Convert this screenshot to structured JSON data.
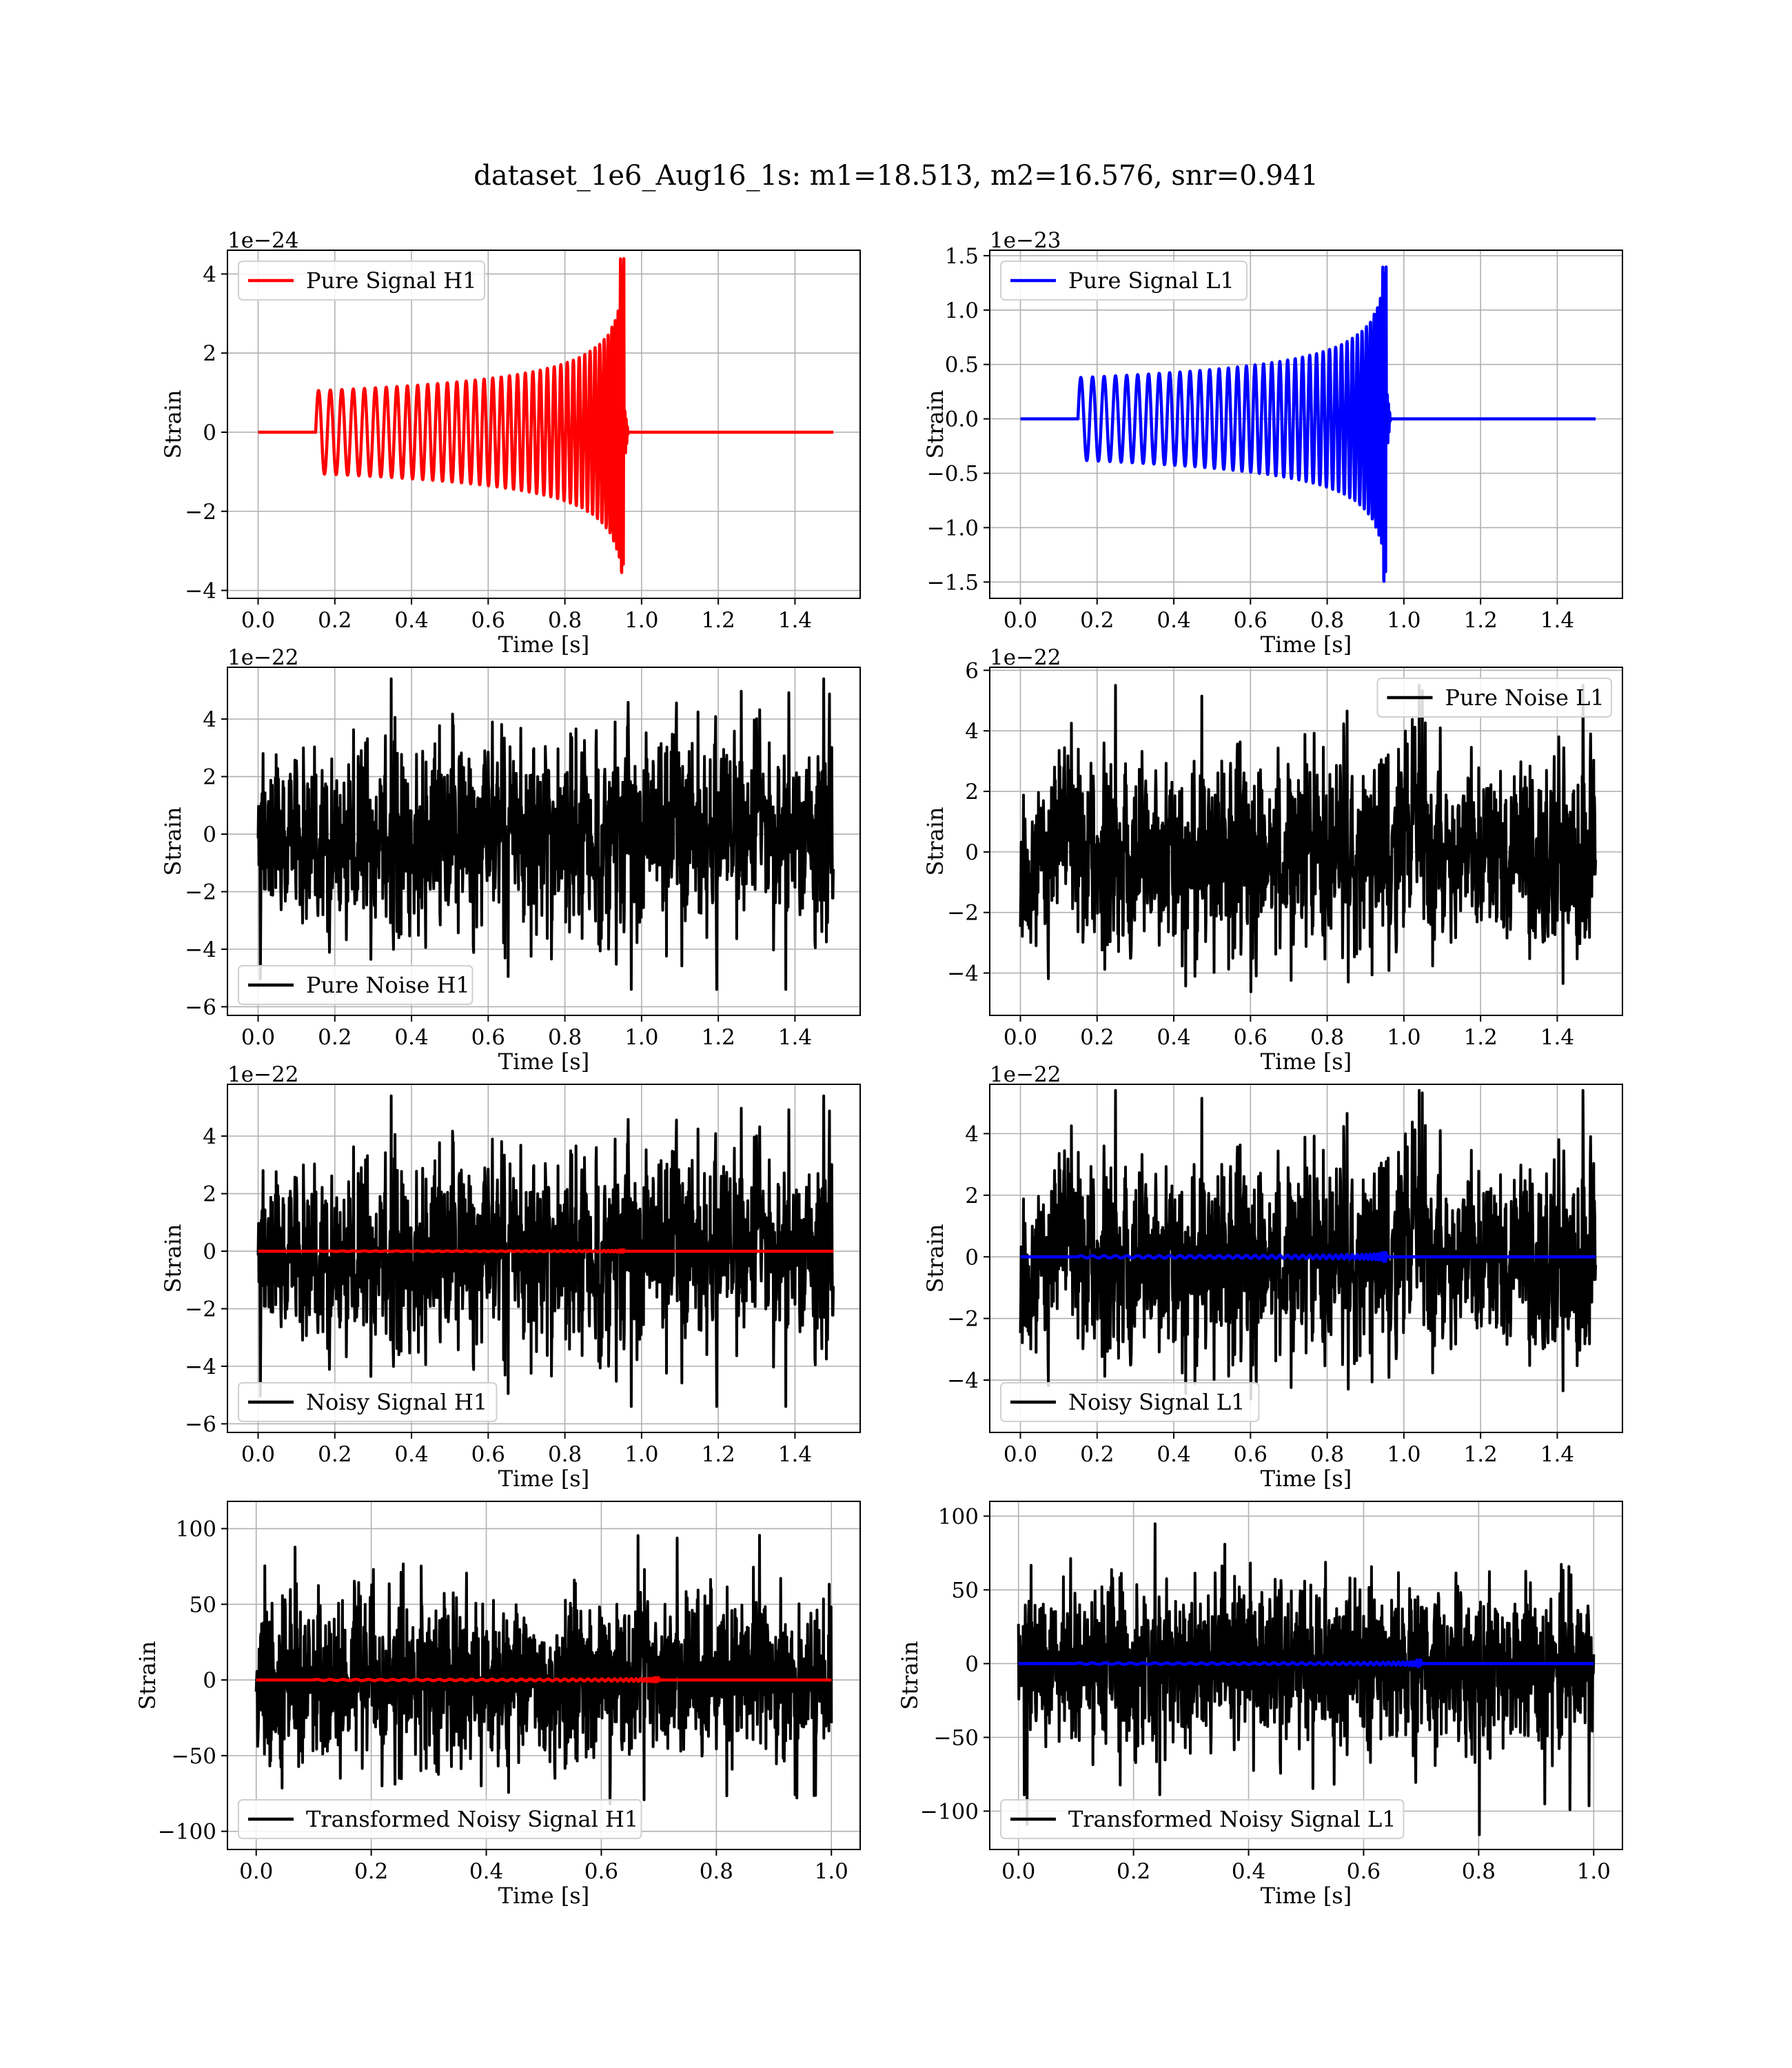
{
  "figure": {
    "title": "dataset_1e6_Aug16_1s: m1=18.513, m2=16.576, snr=0.941"
  },
  "chart_data": [
    {
      "id": "pure-signal-h1",
      "type": "line",
      "title": "",
      "xlabel": "Time [s]",
      "ylabel": "Strain",
      "offset_text": "1e−24",
      "xlim": [
        -0.08,
        1.57
      ],
      "ylim": [
        -4.2,
        4.6
      ],
      "xticks": [
        0.0,
        0.2,
        0.4,
        0.6,
        0.8,
        1.0,
        1.2,
        1.4
      ],
      "xtick_labels": [
        "0.0",
        "0.2",
        "0.4",
        "0.6",
        "0.8",
        "1.0",
        "1.2",
        "1.4"
      ],
      "yticks": [
        -4,
        -2,
        0,
        2,
        4
      ],
      "ytick_labels": [
        "−4",
        "−2",
        "0",
        "2",
        "4"
      ],
      "grid": true,
      "legend_position": "upper-left",
      "series": [
        {
          "name": "Pure Signal H1",
          "color": "#ff0000",
          "kind": "chirp",
          "x_range": [
            0.0,
            1.5
          ],
          "start": 0.15,
          "merger": 0.955,
          "amp_start": 1.05,
          "amp_peak": 4.4,
          "amp_min": -3.8,
          "cycles": 42,
          "samples": 2400,
          "seed": 11
        }
      ]
    },
    {
      "id": "pure-signal-l1",
      "type": "line",
      "title": "",
      "xlabel": "Time [s]",
      "ylabel": "Strain",
      "offset_text": "1e−23",
      "xlim": [
        -0.08,
        1.57
      ],
      "ylim": [
        -1.65,
        1.55
      ],
      "xticks": [
        0.0,
        0.2,
        0.4,
        0.6,
        0.8,
        1.0,
        1.2,
        1.4
      ],
      "xtick_labels": [
        "0.0",
        "0.2",
        "0.4",
        "0.6",
        "0.8",
        "1.0",
        "1.2",
        "1.4"
      ],
      "yticks": [
        -1.5,
        -1.0,
        -0.5,
        0.0,
        0.5,
        1.0,
        1.5
      ],
      "ytick_labels": [
        "−1.5",
        "−1.0",
        "−0.5",
        "0.0",
        "0.5",
        "1.0",
        "1.5"
      ],
      "grid": true,
      "legend_position": "upper-left",
      "series": [
        {
          "name": "Pure Signal L1",
          "color": "#0000ff",
          "kind": "chirp",
          "x_range": [
            0.0,
            1.5
          ],
          "start": 0.15,
          "merger": 0.955,
          "amp_start": 0.38,
          "amp_peak": 1.4,
          "amp_min": -1.6,
          "cycles": 42,
          "samples": 2400,
          "seed": 12
        }
      ]
    },
    {
      "id": "pure-noise-h1",
      "type": "line",
      "title": "",
      "xlabel": "Time [s]",
      "ylabel": "Strain",
      "offset_text": "1e−22",
      "xlim": [
        -0.08,
        1.57
      ],
      "ylim": [
        -6.3,
        5.8
      ],
      "xticks": [
        0.0,
        0.2,
        0.4,
        0.6,
        0.8,
        1.0,
        1.2,
        1.4
      ],
      "xtick_labels": [
        "0.0",
        "0.2",
        "0.4",
        "0.6",
        "0.8",
        "1.0",
        "1.2",
        "1.4"
      ],
      "yticks": [
        -6,
        -4,
        -2,
        0,
        2,
        4
      ],
      "ytick_labels": [
        "−6",
        "−4",
        "−2",
        "0",
        "2",
        "4"
      ],
      "grid": true,
      "legend_position": "lower-left",
      "series": [
        {
          "name": "Pure Noise H1",
          "color": "#000000",
          "kind": "noise",
          "x_range": [
            0.0,
            1.5
          ],
          "scale": 1.6,
          "clip": [
            -5.4,
            5.4
          ],
          "samples": 1500,
          "seed": 101
        }
      ]
    },
    {
      "id": "pure-noise-l1",
      "type": "line",
      "title": "",
      "xlabel": "Time [s]",
      "ylabel": "Strain",
      "offset_text": "1e−22",
      "xlim": [
        -0.08,
        1.57
      ],
      "ylim": [
        -5.4,
        6.1
      ],
      "xticks": [
        0.0,
        0.2,
        0.4,
        0.6,
        0.8,
        1.0,
        1.2,
        1.4
      ],
      "xtick_labels": [
        "0.0",
        "0.2",
        "0.4",
        "0.6",
        "0.8",
        "1.0",
        "1.2",
        "1.4"
      ],
      "yticks": [
        -4,
        -2,
        0,
        2,
        4,
        6
      ],
      "ytick_labels": [
        "−4",
        "−2",
        "0",
        "2",
        "4",
        "6"
      ],
      "grid": true,
      "legend_position": "upper-right",
      "series": [
        {
          "name": "Pure Noise L1",
          "color": "#000000",
          "kind": "noise",
          "x_range": [
            0.0,
            1.5
          ],
          "scale": 1.55,
          "clip": [
            -5.0,
            5.5
          ],
          "samples": 1500,
          "seed": 202
        }
      ]
    },
    {
      "id": "noisy-signal-h1",
      "type": "line",
      "title": "",
      "xlabel": "Time [s]",
      "ylabel": "Strain",
      "offset_text": "1e−22",
      "xlim": [
        -0.08,
        1.57
      ],
      "ylim": [
        -6.3,
        5.8
      ],
      "xticks": [
        0.0,
        0.2,
        0.4,
        0.6,
        0.8,
        1.0,
        1.2,
        1.4
      ],
      "xtick_labels": [
        "0.0",
        "0.2",
        "0.4",
        "0.6",
        "0.8",
        "1.0",
        "1.2",
        "1.4"
      ],
      "yticks": [
        -6,
        -4,
        -2,
        0,
        2,
        4
      ],
      "ytick_labels": [
        "−6",
        "−4",
        "−2",
        "0",
        "2",
        "4"
      ],
      "grid": true,
      "legend_position": "lower-left",
      "series": [
        {
          "name": "Noisy Signal H1",
          "color": "#000000",
          "kind": "noise",
          "x_range": [
            0.0,
            1.5
          ],
          "scale": 1.6,
          "clip": [
            -5.4,
            5.4
          ],
          "samples": 1500,
          "seed": 101
        },
        {
          "name": "",
          "color": "#ff0000",
          "kind": "chirp",
          "x_range": [
            0.0,
            1.5
          ],
          "start": 0.15,
          "merger": 0.955,
          "amp_start": 0.0105,
          "amp_peak": 0.044,
          "amp_min": -0.038,
          "cycles": 42,
          "samples": 1200,
          "seed": 13
        }
      ]
    },
    {
      "id": "noisy-signal-l1",
      "type": "line",
      "title": "",
      "xlabel": "Time [s]",
      "ylabel": "Strain",
      "offset_text": "1e−22",
      "xlim": [
        -0.08,
        1.57
      ],
      "ylim": [
        -5.7,
        5.6
      ],
      "xticks": [
        0.0,
        0.2,
        0.4,
        0.6,
        0.8,
        1.0,
        1.2,
        1.4
      ],
      "xtick_labels": [
        "0.0",
        "0.2",
        "0.4",
        "0.6",
        "0.8",
        "1.0",
        "1.2",
        "1.4"
      ],
      "yticks": [
        -4,
        -2,
        0,
        2,
        4
      ],
      "ytick_labels": [
        "−4",
        "−2",
        "0",
        "2",
        "4"
      ],
      "grid": true,
      "legend_position": "lower-left",
      "series": [
        {
          "name": "Noisy Signal L1",
          "color": "#000000",
          "kind": "noise",
          "x_range": [
            0.0,
            1.5
          ],
          "scale": 1.55,
          "clip": [
            -5.2,
            5.4
          ],
          "samples": 1500,
          "seed": 202
        },
        {
          "name": "",
          "color": "#0000ff",
          "kind": "chirp",
          "x_range": [
            0.0,
            1.5
          ],
          "start": 0.15,
          "merger": 0.955,
          "amp_start": 0.038,
          "amp_peak": 0.14,
          "amp_min": -0.16,
          "cycles": 42,
          "samples": 1200,
          "seed": 14
        }
      ]
    },
    {
      "id": "transformed-noisy-signal-h1",
      "type": "line",
      "title": "",
      "xlabel": "Time [s]",
      "ylabel": "Strain",
      "offset_text": "",
      "xlim": [
        -0.05,
        1.05
      ],
      "ylim": [
        -112,
        118
      ],
      "xticks": [
        0.0,
        0.2,
        0.4,
        0.6,
        0.8,
        1.0
      ],
      "xtick_labels": [
        "0.0",
        "0.2",
        "0.4",
        "0.6",
        "0.8",
        "1.0"
      ],
      "yticks": [
        -100,
        -50,
        0,
        50,
        100
      ],
      "ytick_labels": [
        "−100",
        "−50",
        "0",
        "50",
        "100"
      ],
      "grid": true,
      "legend_position": "lower-left",
      "series": [
        {
          "name": "Transformed Noisy Signal H1",
          "color": "#000000",
          "kind": "noise",
          "x_range": [
            0.0,
            1.0
          ],
          "scale": 26,
          "clip": [
            -92,
            108
          ],
          "samples": 1600,
          "seed": 303
        },
        {
          "name": "",
          "color": "#ff0000",
          "kind": "chirp",
          "x_range": [
            0.0,
            1.0
          ],
          "start": 0.1,
          "merger": 0.7,
          "amp_start": 0.4,
          "amp_peak": 1.6,
          "amp_min": -1.6,
          "cycles": 42,
          "samples": 1200,
          "seed": 15
        }
      ]
    },
    {
      "id": "transformed-noisy-signal-l1",
      "type": "line",
      "title": "",
      "xlabel": "Time [s]",
      "ylabel": "Strain",
      "offset_text": "",
      "xlim": [
        -0.05,
        1.05
      ],
      "ylim": [
        -126,
        110
      ],
      "xticks": [
        0.0,
        0.2,
        0.4,
        0.6,
        0.8,
        1.0
      ],
      "xtick_labels": [
        "0.0",
        "0.2",
        "0.4",
        "0.6",
        "0.8",
        "1.0"
      ],
      "yticks": [
        -100,
        -50,
        0,
        50,
        100
      ],
      "ytick_labels": [
        "−100",
        "−50",
        "0",
        "50",
        "100"
      ],
      "grid": true,
      "legend_position": "lower-left",
      "series": [
        {
          "name": "Transformed Noisy Signal L1",
          "color": "#000000",
          "kind": "noise",
          "x_range": [
            0.0,
            1.0
          ],
          "scale": 27,
          "clip": [
            -116,
            102
          ],
          "samples": 1600,
          "seed": 404
        },
        {
          "name": "",
          "color": "#0000ff",
          "kind": "chirp",
          "x_range": [
            0.0,
            1.0
          ],
          "start": 0.1,
          "merger": 0.7,
          "amp_start": 0.5,
          "amp_peak": 2.5,
          "amp_min": -2.5,
          "cycles": 42,
          "samples": 1200,
          "seed": 16
        }
      ]
    }
  ]
}
